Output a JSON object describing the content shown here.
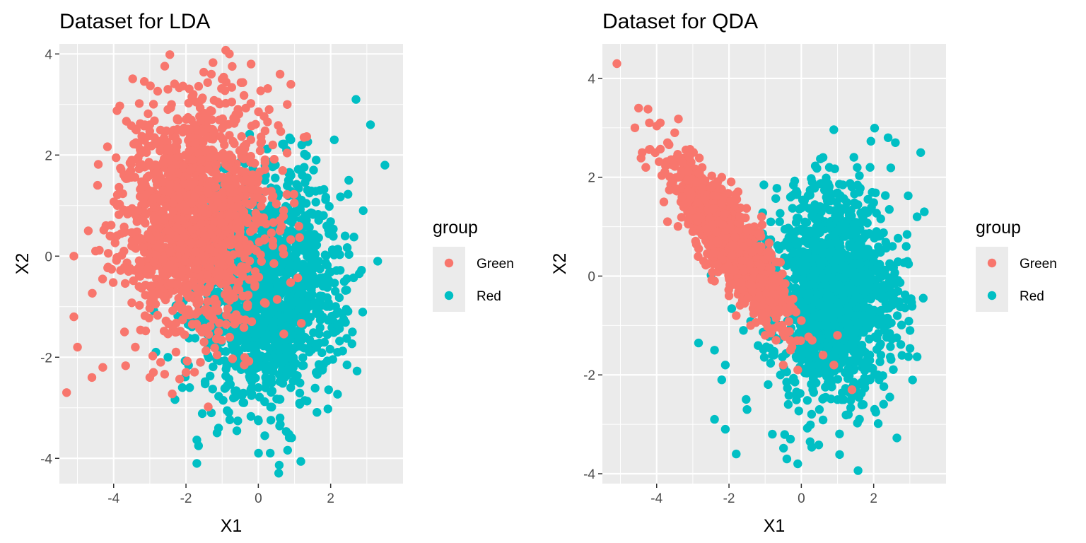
{
  "colors": {
    "Green": "#F8766D",
    "Red": "#00BFC4",
    "panel": "#EBEBEB",
    "grid": "#FFFFFF"
  },
  "legend": {
    "title": "group",
    "items": [
      {
        "label": "Green",
        "color": "#F8766D"
      },
      {
        "label": "Red",
        "color": "#00BFC4"
      }
    ]
  },
  "chart_data": [
    {
      "type": "scatter",
      "title": "Dataset for LDA",
      "xlabel": "X1",
      "ylabel": "X2",
      "xlim": [
        -5.5,
        4.0
      ],
      "ylim": [
        -4.5,
        4.2
      ],
      "xticks": [
        -4,
        -2,
        0,
        2
      ],
      "yticks": [
        -4,
        -2,
        0,
        2,
        4
      ],
      "xtick_labels": [
        "-4",
        "-2",
        "0",
        "2"
      ],
      "ytick_labels": [
        "-4",
        "-2",
        "0",
        "2",
        "4"
      ],
      "series": [
        {
          "name": "Green",
          "approximate_distribution": {
            "mean": [
              -1.8,
              0.8
            ],
            "sd": [
              1.0,
              1.1
            ],
            "n": 1500
          },
          "points": [
            [
              -5.3,
              -2.7
            ],
            [
              -5.0,
              -1.8
            ],
            [
              -4.6,
              -2.4
            ],
            [
              -4.3,
              -2.2
            ],
            [
              -5.1,
              -1.2
            ],
            [
              -4.7,
              0.5
            ],
            [
              -5.1,
              0.0
            ],
            [
              -4.5,
              0.1
            ],
            [
              -4.2,
              0.6
            ],
            [
              -3.9,
              1.0
            ],
            [
              -3.5,
              1.9
            ],
            [
              -3.2,
              2.3
            ],
            [
              -3.0,
              2.6
            ],
            [
              -2.5,
              2.9
            ],
            [
              -2.4,
              3.0
            ],
            [
              -2.5,
              3.3
            ],
            [
              -1.8,
              3.2
            ],
            [
              -1.3,
              3.6
            ],
            [
              -1.0,
              3.5
            ],
            [
              -0.8,
              4.0
            ],
            [
              -0.2,
              3.8
            ],
            [
              0.6,
              3.6
            ],
            [
              0.9,
              3.4
            ],
            [
              0.3,
              2.9
            ],
            [
              0.8,
              3.0
            ],
            [
              0.4,
              2.2
            ],
            [
              0.7,
              0.9
            ],
            [
              0.6,
              0.5
            ],
            [
              0.4,
              0.3
            ],
            [
              -0.1,
              -0.6
            ],
            [
              -0.3,
              -1.0
            ],
            [
              -1.1,
              -1.5
            ],
            [
              -1.5,
              -1.7
            ],
            [
              -1.6,
              -2.1
            ],
            [
              -2.0,
              -2.3
            ],
            [
              -2.7,
              -2.1
            ],
            [
              -2.9,
              -2.3
            ],
            [
              -3.0,
              -2.4
            ],
            [
              -3.4,
              -1.8
            ],
            [
              -3.7,
              -1.5
            ]
          ]
        },
        {
          "name": "Red",
          "approximate_distribution": {
            "mean": [
              0.3,
              -0.6
            ],
            "sd": [
              1.0,
              1.1
            ],
            "n": 1500
          },
          "points": [
            [
              -1.7,
              -4.1
            ],
            [
              -1.1,
              -3.4
            ],
            [
              0.6,
              -3.2
            ],
            [
              -1.3,
              -3.1
            ],
            [
              -0.4,
              -2.9
            ],
            [
              -2.1,
              -2.6
            ],
            [
              0.2,
              -2.4
            ],
            [
              -1.6,
              -2.1
            ],
            [
              -2.5,
              -2.0
            ],
            [
              1.6,
              -2.3
            ],
            [
              2.6,
              -1.5
            ],
            [
              3.3,
              -0.1
            ],
            [
              2.9,
              0.9
            ],
            [
              3.5,
              1.8
            ],
            [
              3.1,
              2.6
            ],
            [
              2.7,
              3.1
            ],
            [
              2.1,
              2.3
            ],
            [
              1.6,
              1.9
            ],
            [
              1.2,
              2.2
            ],
            [
              0.9,
              2.3
            ],
            [
              0.2,
              1.6
            ],
            [
              -0.3,
              0.8
            ],
            [
              -0.5,
              0.3
            ],
            [
              -0.8,
              -0.5
            ],
            [
              -1.5,
              -1.2
            ],
            [
              0.9,
              -2.0
            ],
            [
              1.9,
              -0.4
            ],
            [
              2.4,
              0.4
            ],
            [
              1.3,
              0.8
            ],
            [
              0.6,
              -1.3
            ],
            [
              -0.2,
              -1.8
            ],
            [
              0.5,
              -0.7
            ],
            [
              1.4,
              -1.0
            ],
            [
              2.2,
              -1.1
            ],
            [
              0.2,
              0.9
            ],
            [
              -0.9,
              -2.6
            ],
            [
              0.0,
              -2.6
            ],
            [
              -1.9,
              -2.6
            ],
            [
              1.7,
              1.3
            ],
            [
              2.5,
              1.5
            ]
          ]
        }
      ]
    },
    {
      "type": "scatter",
      "title": "Dataset for QDA",
      "xlabel": "X1",
      "ylabel": "X2",
      "xlim": [
        -5.5,
        4.0
      ],
      "ylim": [
        -4.2,
        4.7
      ],
      "xticks": [
        -4,
        -2,
        0,
        2
      ],
      "yticks": [
        -4,
        -2,
        0,
        2,
        4
      ],
      "xtick_labels": [
        "-4",
        "-2",
        "0",
        "2"
      ],
      "ytick_labels": [
        "-4",
        "-2",
        "0",
        "2",
        "4"
      ],
      "series": [
        {
          "name": "Green",
          "approximate_distribution": {
            "center": [
              -2.0,
              0.7
            ],
            "slope": -1.05,
            "spread_along": 1.0,
            "spread_across": 0.28,
            "n": 1500
          },
          "points": [
            [
              -5.1,
              4.3
            ],
            [
              -4.5,
              3.4
            ],
            [
              -4.2,
              3.1
            ],
            [
              -4.6,
              3.0
            ],
            [
              -3.9,
              3.1
            ],
            [
              -4.4,
              2.5
            ],
            [
              -4.3,
              2.2
            ],
            [
              -3.7,
              2.7
            ],
            [
              -3.5,
              2.9
            ],
            [
              -3.8,
              1.5
            ],
            [
              -3.7,
              1.1
            ],
            [
              -3.3,
              1.6
            ],
            [
              -3.0,
              0.9
            ],
            [
              -2.7,
              0.3
            ],
            [
              -2.5,
              1.8
            ],
            [
              -2.2,
              2.0
            ],
            [
              -1.9,
              1.5
            ],
            [
              -1.3,
              1.0
            ],
            [
              -1.1,
              1.2
            ],
            [
              -2.4,
              -0.1
            ],
            [
              -2.0,
              -0.4
            ],
            [
              -1.8,
              -0.8
            ],
            [
              -1.4,
              -1.0
            ],
            [
              -1.0,
              -1.2
            ],
            [
              -0.7,
              -1.3
            ],
            [
              -0.3,
              -1.5
            ],
            [
              -0.5,
              -1.8
            ],
            [
              -0.1,
              -1.9
            ],
            [
              0.3,
              -1.3
            ],
            [
              0.6,
              -1.6
            ],
            [
              0.9,
              -1.8
            ],
            [
              1.0,
              -1.2
            ],
            [
              1.4,
              -2.3
            ],
            [
              -0.9,
              0.5
            ],
            [
              -0.6,
              0.0
            ],
            [
              -0.3,
              -0.6
            ],
            [
              0.0,
              -0.9
            ],
            [
              -1.6,
              0.6
            ],
            [
              -2.9,
              1.9
            ],
            [
              -3.3,
              2.3
            ]
          ]
        },
        {
          "name": "Red",
          "approximate_distribution": {
            "center": [
              0.9,
              -0.4
            ],
            "sd_x": 0.85,
            "sd_y": 1.05,
            "n": 1500
          },
          "points": [
            [
              -0.1,
              -3.8
            ],
            [
              -0.3,
              -3.3
            ],
            [
              -0.4,
              -3.7
            ],
            [
              -1.8,
              -3.6
            ],
            [
              -2.1,
              -3.1
            ],
            [
              -2.4,
              -2.9
            ],
            [
              -0.8,
              -3.2
            ],
            [
              -1.5,
              -2.7
            ],
            [
              -2.2,
              -2.1
            ],
            [
              -2.4,
              -1.5
            ],
            [
              -2.1,
              -1.8
            ],
            [
              -1.6,
              -1.1
            ],
            [
              0.5,
              -2.7
            ],
            [
              1.0,
              -2.5
            ],
            [
              1.3,
              -2.8
            ],
            [
              1.9,
              -2.1
            ],
            [
              2.2,
              -1.6
            ],
            [
              2.6,
              -0.5
            ],
            [
              2.9,
              0.6
            ],
            [
              3.2,
              1.2
            ],
            [
              3.4,
              1.3
            ],
            [
              3.3,
              2.5
            ],
            [
              2.6,
              2.7
            ],
            [
              2.4,
              2.8
            ],
            [
              1.9,
              2.2
            ],
            [
              1.6,
              1.7
            ],
            [
              0.6,
              2.4
            ],
            [
              0.3,
              1.9
            ],
            [
              -0.3,
              1.6
            ],
            [
              -0.6,
              1.1
            ],
            [
              -0.9,
              0.5
            ],
            [
              0.0,
              0.1
            ],
            [
              0.8,
              -0.4
            ],
            [
              1.5,
              -0.8
            ],
            [
              2.0,
              0.3
            ],
            [
              1.2,
              0.8
            ],
            [
              0.5,
              -1.0
            ],
            [
              2.3,
              -1.1
            ],
            [
              -0.8,
              -1.6
            ],
            [
              1.7,
              -1.5
            ]
          ]
        }
      ]
    }
  ]
}
